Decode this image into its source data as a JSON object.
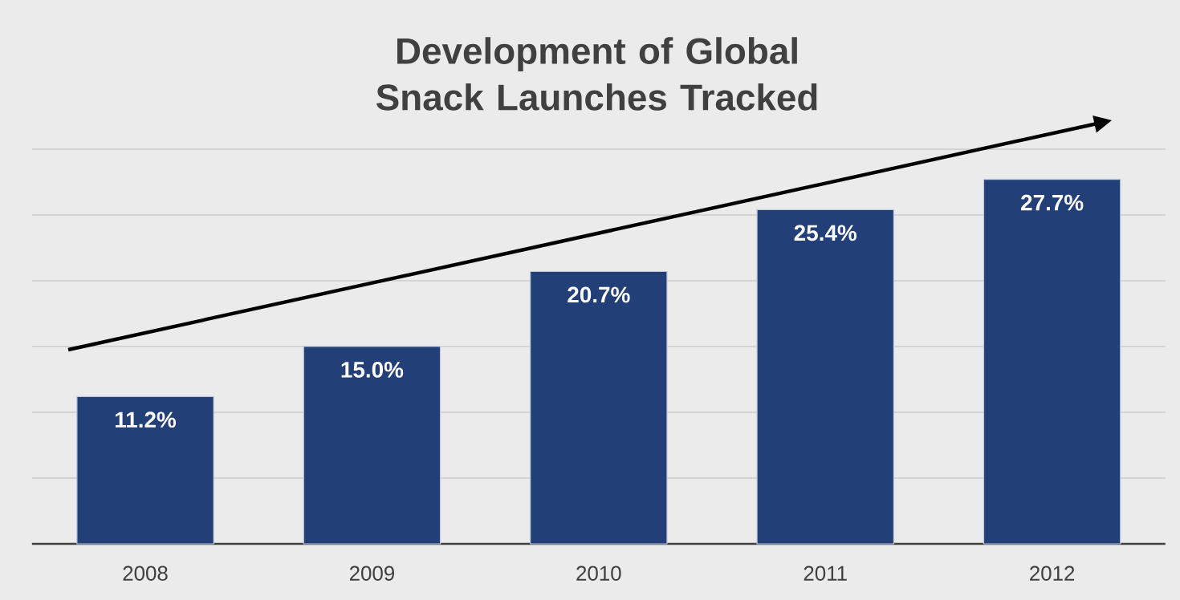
{
  "chart_data": {
    "type": "bar",
    "title": "Development of Global Snack Launches Tracked",
    "categories": [
      "2008",
      "2009",
      "2010",
      "2011",
      "2012"
    ],
    "values": [
      11.2,
      15.0,
      20.7,
      25.4,
      27.7
    ],
    "value_labels": [
      "11.2%",
      "15.0%",
      "20.7%",
      "25.4%",
      "27.7%"
    ],
    "color": "#233f78",
    "ylim": [
      0,
      30
    ],
    "yticks": [
      {
        "value": 5,
        "label": null
      },
      {
        "value": 10,
        "label": null
      },
      {
        "value": 15,
        "label": null
      },
      {
        "value": 20,
        "label": null
      },
      {
        "value": 25,
        "label": null
      },
      {
        "value": 30,
        "label": null
      }
    ],
    "grid": "y",
    "tick_labels": "x"
  }
}
